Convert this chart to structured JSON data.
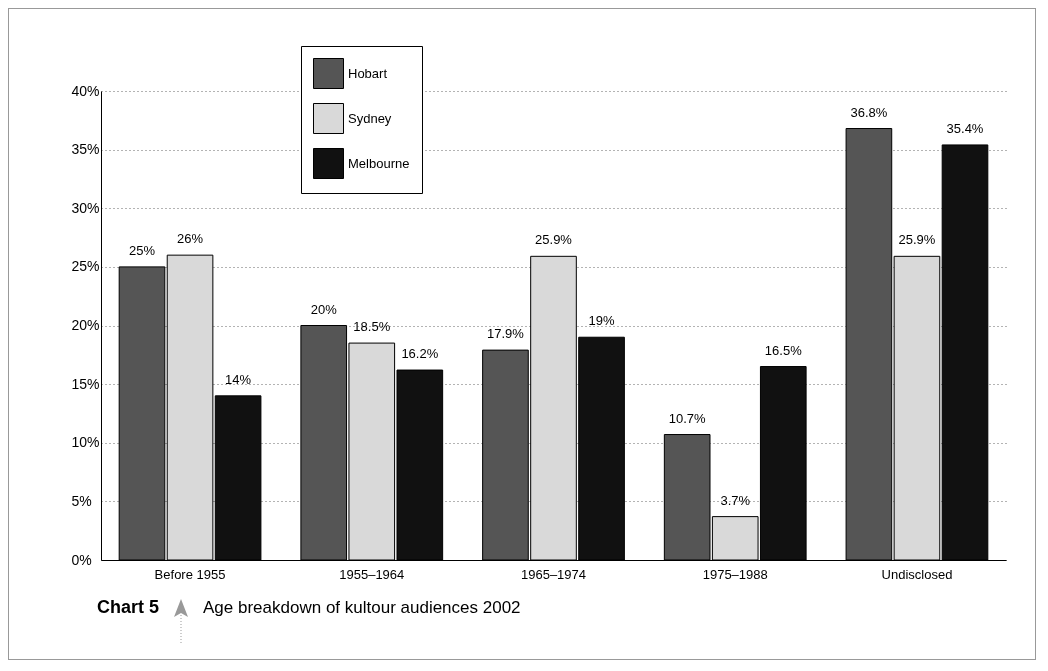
{
  "chart_data": {
    "type": "bar",
    "title": "Chart 5",
    "subtitle": "Age breakdown of kultour audiences 2002",
    "categories": [
      "Before 1955",
      "1955–1964",
      "1965–1974",
      "1975–1988",
      "Undisclosed"
    ],
    "series": [
      {
        "name": "Hobart",
        "color": "#555555",
        "values": [
          25,
          20,
          17.9,
          10.7,
          36.8
        ],
        "value_labels": [
          "25%",
          "20%",
          "17.9%",
          "10.7%",
          "36.8%"
        ]
      },
      {
        "name": "Sydney",
        "color": "#d9d9d9",
        "values": [
          26,
          18.5,
          25.9,
          3.7,
          25.9
        ],
        "value_labels": [
          "26%",
          "18.5%",
          "25.9%",
          "3.7%",
          "25.9%"
        ]
      },
      {
        "name": "Melbourne",
        "color": "#111111",
        "values": [
          14,
          16.2,
          19,
          16.5,
          35.4
        ],
        "value_labels": [
          "14%",
          "16.2%",
          "19%",
          "16.5%",
          "35.4%"
        ]
      }
    ],
    "ylim": [
      0,
      40
    ],
    "yticks": [
      {
        "value": 0,
        "label": "0%"
      },
      {
        "value": 5,
        "label": "5%"
      },
      {
        "value": 10,
        "label": "10%"
      },
      {
        "value": 15,
        "label": "15%"
      },
      {
        "value": 20,
        "label": "20%"
      },
      {
        "value": 25,
        "label": "25%"
      },
      {
        "value": 30,
        "label": "30%"
      },
      {
        "value": 35,
        "label": "35%"
      },
      {
        "value": 40,
        "label": "40%"
      }
    ],
    "grid": "y",
    "legend": "top left"
  }
}
